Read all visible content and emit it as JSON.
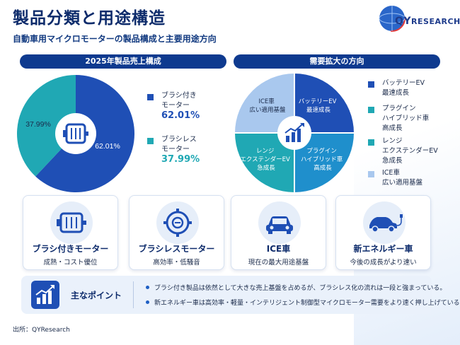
{
  "header": {
    "title": "製品分類と用途構造",
    "subtitle": "自動車用マイクロモーターの製品構成と主要用途方向"
  },
  "logo": {
    "text_big": "QY",
    "text_small": "RESEARCH"
  },
  "left_panel": {
    "heading": "2025年製品売上構成",
    "slices": [
      {
        "label": "62.01%",
        "color": "#1f4fb5"
      },
      {
        "label": "37.99%",
        "color": "#20a8b4"
      }
    ],
    "legend": [
      {
        "line1": "ブラシ付き",
        "line2": "モーター",
        "value": "62.01%",
        "color": "#1f4fb5"
      },
      {
        "line1": "ブラシレス",
        "line2": "モーター",
        "value": "37.99%",
        "color": "#20a8b4"
      }
    ]
  },
  "right_panel": {
    "heading": "需要拡大の方向",
    "quadrants": [
      {
        "line1": "バッテリーEV",
        "line2": "最速成長",
        "color": "#1f4fb5"
      },
      {
        "line1": "プラグイン",
        "line2": "ハイブリッド車",
        "line3": "高成長",
        "color": "#1f8fcc"
      },
      {
        "line1": "レンジ",
        "line2": "エクステンダーEV",
        "line3": "急成長",
        "color": "#20a8b4"
      },
      {
        "line1": "ICE車",
        "line2": "広い適用基盤",
        "color": "#a9c8ee"
      }
    ],
    "legend": [
      {
        "line1": "バッテリーEV",
        "line2": "最速成長",
        "color": "#1f4fb5"
      },
      {
        "line1": "プラグイン",
        "line2": "ハイブリッド車",
        "line3": "高成長",
        "color": "#20a8b4"
      },
      {
        "line1": "レンジ",
        "line2": "エクステンダーEV",
        "line3": "急成長",
        "color": "#20a8b4"
      },
      {
        "line1": "ICE車",
        "line2": "広い適用基盤",
        "color": "#a9c8ee"
      }
    ]
  },
  "cards": [
    {
      "title": "ブラシ付きモーター",
      "desc": "成熟・コスト優位",
      "icon": "motor-icon"
    },
    {
      "title": "ブラシレスモーター",
      "desc": "高効率・低騒音",
      "icon": "brushless-motor-icon"
    },
    {
      "title": "ICE車",
      "desc": "現在の最大用途基盤",
      "icon": "car-icon"
    },
    {
      "title": "新エネルギー車",
      "desc": "今後の成長がより速い",
      "icon": "ev-car-icon"
    }
  ],
  "key_points": {
    "label": "主なポイント",
    "items": [
      "ブラシ付き製品は依然として大きな売上基盤を占めるが、ブラシレス化の流れは一段と強まっている。",
      "新エネルギー車は高効率・軽量・インテリジェント制御型マイクロモーター需要をより速く押し上げている。"
    ]
  },
  "source": "出所：QYResearch",
  "chart_data": [
    {
      "type": "pie",
      "title": "2025年製品売上構成",
      "categories": [
        "ブラシ付きモーター",
        "ブラシレスモーター"
      ],
      "values": [
        62.01,
        37.99
      ],
      "colors": [
        "#1f4fb5",
        "#20a8b4"
      ],
      "legend": "right"
    }
  ]
}
